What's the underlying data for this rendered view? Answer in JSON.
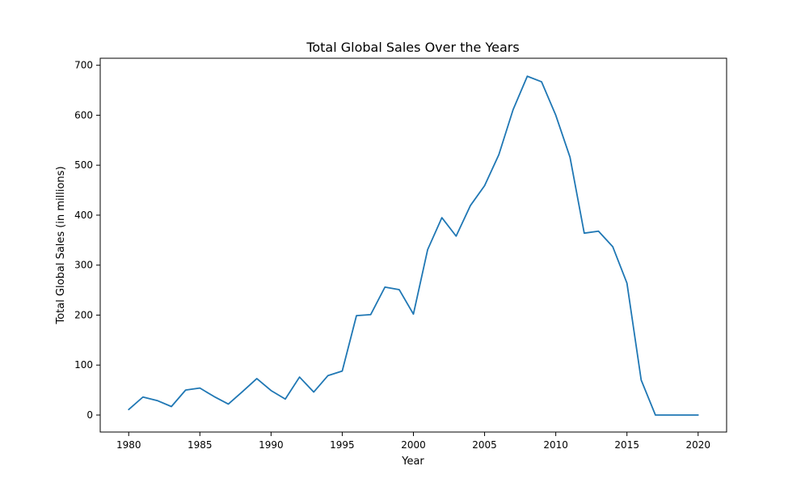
{
  "chart_data": {
    "type": "line",
    "title": "Total Global Sales Over the Years",
    "xlabel": "Year",
    "ylabel": "Total Global Sales (in millions)",
    "xlim": [
      1978,
      2022
    ],
    "ylim": [
      -34,
      714
    ],
    "xticks": [
      1980,
      1985,
      1990,
      1995,
      2000,
      2005,
      2010,
      2015,
      2020
    ],
    "yticks": [
      0,
      100,
      200,
      300,
      400,
      500,
      600,
      700
    ],
    "grid": false,
    "series_color": "#1f77b4",
    "series": [
      {
        "x": [
          1980,
          1981,
          1982,
          1983,
          1984,
          1985,
          1986,
          1987,
          1988,
          1989,
          1990,
          1991,
          1992,
          1993,
          1994,
          1995,
          1996,
          1997,
          1998,
          1999,
          2000,
          2001,
          2002,
          2003,
          2004,
          2005,
          2006,
          2007,
          2008,
          2009,
          2010,
          2011,
          2012,
          2013,
          2014,
          2015,
          2016,
          2017,
          2018,
          2020
        ],
        "values": [
          11,
          36,
          29,
          17,
          50,
          54,
          37,
          22,
          47,
          73,
          49,
          32,
          76,
          46,
          79,
          88,
          199,
          201,
          256,
          251,
          202,
          331,
          395,
          358,
          419,
          459,
          521,
          611,
          678,
          667,
          600,
          516,
          364,
          368,
          337,
          264,
          70,
          0,
          0,
          0
        ]
      }
    ]
  }
}
